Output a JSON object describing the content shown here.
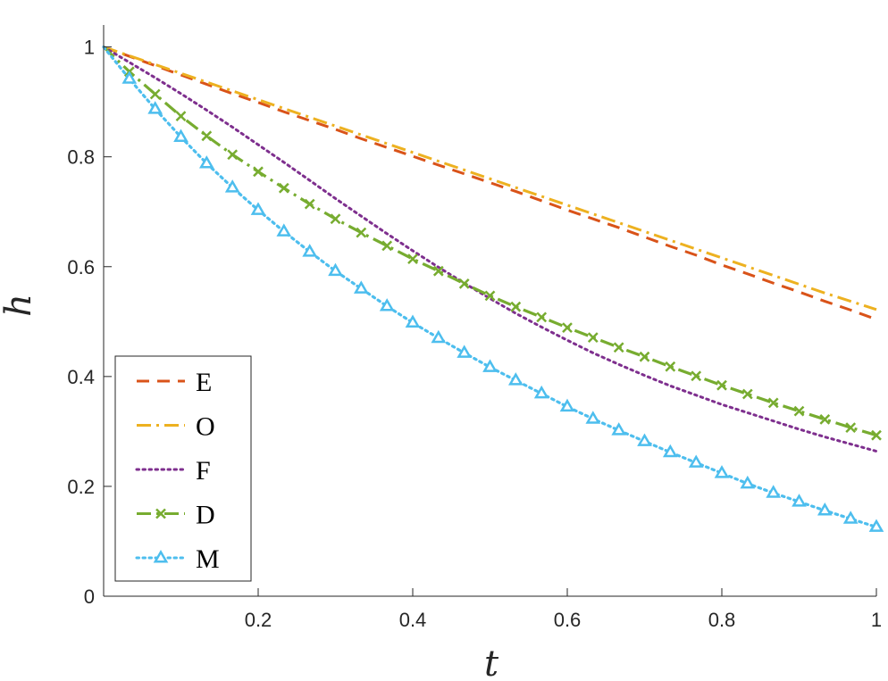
{
  "chart_data": {
    "type": "line",
    "xlabel": "t",
    "ylabel": "h",
    "xlim": [
      0,
      1
    ],
    "ylim": [
      0,
      1.04
    ],
    "x_ticks": [
      0.2,
      0.4,
      0.6,
      0.8,
      1
    ],
    "x_tick_labels": [
      "0.2",
      "0.4",
      "0.6",
      "0.8",
      "1"
    ],
    "y_ticks": [
      0,
      0.2,
      0.4,
      0.6,
      0.8,
      1
    ],
    "y_tick_labels": [
      "0",
      "0.2",
      "0.4",
      "0.6",
      "0.8",
      "1"
    ],
    "grid": false,
    "legend_position": "bottom-left",
    "x": [
      0,
      0.0333,
      0.0667,
      0.1,
      0.1333,
      0.1667,
      0.2,
      0.2333,
      0.2667,
      0.3,
      0.3333,
      0.3667,
      0.4,
      0.4333,
      0.4667,
      0.5,
      0.5333,
      0.5667,
      0.6,
      0.6333,
      0.6667,
      0.7,
      0.7333,
      0.7667,
      0.8,
      0.8333,
      0.8667,
      0.9,
      0.9333,
      0.9667,
      1
    ],
    "series": [
      {
        "name": "E",
        "color": "#D95319",
        "dash": "dashed",
        "marker": "none",
        "values": [
          1,
          0.983,
          0.966,
          0.949,
          0.932,
          0.915,
          0.899,
          0.882,
          0.866,
          0.85,
          0.833,
          0.817,
          0.801,
          0.785,
          0.769,
          0.753,
          0.737,
          0.72,
          0.703,
          0.687,
          0.671,
          0.654,
          0.637,
          0.621,
          0.603,
          0.587,
          0.57,
          0.554,
          0.537,
          0.521,
          0.504
        ]
      },
      {
        "name": "O",
        "color": "#EDB120",
        "dash": "dashdot",
        "marker": "none",
        "values": [
          1,
          0.984,
          0.968,
          0.952,
          0.936,
          0.92,
          0.904,
          0.888,
          0.872,
          0.856,
          0.84,
          0.824,
          0.808,
          0.792,
          0.776,
          0.76,
          0.744,
          0.728,
          0.712,
          0.696,
          0.68,
          0.664,
          0.648,
          0.632,
          0.616,
          0.6,
          0.584,
          0.568,
          0.552,
          0.537,
          0.522
        ]
      },
      {
        "name": "F",
        "color": "#7E2F8E",
        "dash": "dotted",
        "marker": "none",
        "values": [
          1,
          0.972,
          0.944,
          0.915,
          0.885,
          0.854,
          0.822,
          0.79,
          0.757,
          0.724,
          0.692,
          0.66,
          0.629,
          0.599,
          0.57,
          0.542,
          0.515,
          0.49,
          0.466,
          0.443,
          0.422,
          0.402,
          0.383,
          0.366,
          0.349,
          0.334,
          0.319,
          0.304,
          0.29,
          0.277,
          0.264
        ]
      },
      {
        "name": "D",
        "color": "#77AC30",
        "dash": "dashdot",
        "marker": "x",
        "values": [
          1,
          0.955,
          0.914,
          0.874,
          0.838,
          0.804,
          0.773,
          0.743,
          0.714,
          0.687,
          0.662,
          0.638,
          0.614,
          0.592,
          0.569,
          0.547,
          0.527,
          0.508,
          0.489,
          0.471,
          0.453,
          0.436,
          0.418,
          0.401,
          0.384,
          0.368,
          0.352,
          0.337,
          0.322,
          0.307,
          0.293
        ]
      },
      {
        "name": "M",
        "color": "#4DBEEE",
        "dash": "dotted",
        "marker": "triangle",
        "values": [
          1,
          0.942,
          0.887,
          0.836,
          0.788,
          0.744,
          0.703,
          0.664,
          0.627,
          0.592,
          0.56,
          0.528,
          0.498,
          0.47,
          0.443,
          0.417,
          0.393,
          0.369,
          0.345,
          0.323,
          0.302,
          0.282,
          0.262,
          0.243,
          0.224,
          0.205,
          0.188,
          0.172,
          0.156,
          0.141,
          0.126
        ]
      }
    ]
  }
}
